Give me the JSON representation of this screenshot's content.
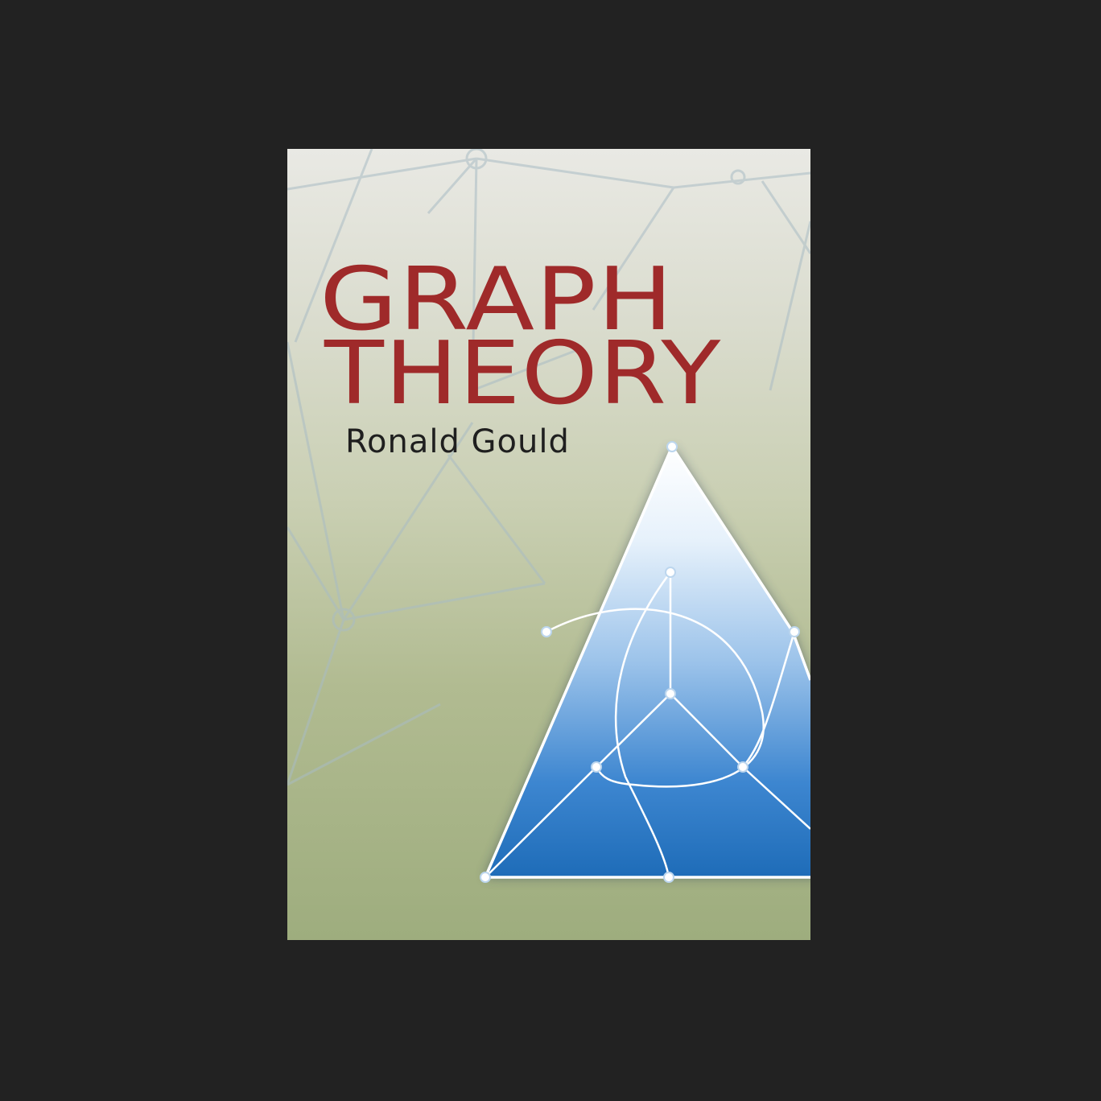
{
  "book": {
    "title_line1": "GRAPH",
    "title_line2": "THEORY",
    "author": "Ronald Gould"
  },
  "colors": {
    "page_background": "#222222",
    "title": "#9f2a2a",
    "author": "#1f1f1f",
    "triangle_top": "#ffffff",
    "triangle_bottom": "#1e6cb8",
    "graph_lines": "#ffffff",
    "background_network": "#a9bcc4"
  },
  "icons": {
    "background": "network-graph-icon",
    "illustration": "triangle-graph-icon"
  }
}
